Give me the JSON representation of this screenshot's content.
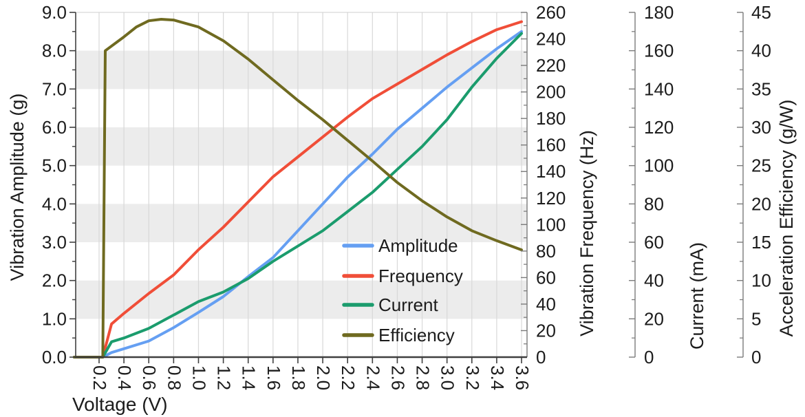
{
  "chart_data": {
    "type": "line",
    "title": "",
    "xlabel": "Voltage (V)",
    "x_ticks": [
      "0.2",
      "0.4",
      "0.6",
      "0.8",
      "1.0",
      "1.2",
      "1.4",
      "1.6",
      "1.8",
      "2.0",
      "2.2",
      "2.4",
      "2.6",
      "2.8",
      "3.0",
      "3.2",
      "3.4",
      "3.6"
    ],
    "x_tick_values": [
      0.2,
      0.4,
      0.6,
      0.8,
      1.0,
      1.2,
      1.4,
      1.6,
      1.8,
      2.0,
      2.2,
      2.4,
      2.6,
      2.8,
      3.0,
      3.2,
      3.4,
      3.6
    ],
    "x_range": [
      0.0,
      3.65
    ],
    "background_bands_amplitude": [
      [
        1,
        2
      ],
      [
        3,
        4
      ],
      [
        5,
        6
      ],
      [
        7,
        8
      ]
    ],
    "axes": [
      {
        "id": "amplitude",
        "label": "Vibration Amplitude (g)",
        "side": "left",
        "min": 0,
        "max": 9,
        "tick_step": 1,
        "minor_step": 0.5,
        "decimals": 1
      },
      {
        "id": "frequency",
        "label": "Vibration Frequency (Hz)",
        "side": "right",
        "min": 0,
        "max": 260,
        "tick_step": 20,
        "minor_step": 10,
        "decimals": 0
      },
      {
        "id": "current",
        "label": "Current (mA)",
        "side": "right",
        "min": 0,
        "max": 180,
        "tick_step": 20,
        "minor_step": 10,
        "decimals": 0
      },
      {
        "id": "efficiency",
        "label": "Acceleration Efficiency (g/W)",
        "side": "right",
        "min": 0,
        "max": 45,
        "tick_step": 5,
        "minor_step": 2.5,
        "decimals": 0
      }
    ],
    "series": [
      {
        "name": "Amplitude",
        "axis": "amplitude",
        "unit": "g",
        "color": "#659ff2",
        "points": [
          [
            0,
            0
          ],
          [
            0.23,
            0
          ],
          [
            0.3,
            0.12
          ],
          [
            0.4,
            0.22
          ],
          [
            0.6,
            0.42
          ],
          [
            0.8,
            0.77
          ],
          [
            1.0,
            1.17
          ],
          [
            1.2,
            1.58
          ],
          [
            1.4,
            2.1
          ],
          [
            1.6,
            2.6
          ],
          [
            1.8,
            3.3
          ],
          [
            2.0,
            4.0
          ],
          [
            2.2,
            4.7
          ],
          [
            2.4,
            5.3
          ],
          [
            2.6,
            5.95
          ],
          [
            2.8,
            6.5
          ],
          [
            3.0,
            7.05
          ],
          [
            3.2,
            7.55
          ],
          [
            3.4,
            8.05
          ],
          [
            3.6,
            8.5
          ]
        ]
      },
      {
        "name": "Frequency",
        "axis": "frequency",
        "unit": "Hz",
        "color": "#f04e38",
        "points": [
          [
            0,
            0
          ],
          [
            0.23,
            0
          ],
          [
            0.3,
            25
          ],
          [
            0.4,
            33
          ],
          [
            0.6,
            48
          ],
          [
            0.8,
            62
          ],
          [
            1.0,
            81
          ],
          [
            1.2,
            98
          ],
          [
            1.4,
            117
          ],
          [
            1.6,
            136
          ],
          [
            1.8,
            151
          ],
          [
            2.0,
            166
          ],
          [
            2.2,
            181
          ],
          [
            2.4,
            195
          ],
          [
            2.6,
            206
          ],
          [
            2.8,
            217
          ],
          [
            3.0,
            228
          ],
          [
            3.2,
            238
          ],
          [
            3.4,
            247
          ],
          [
            3.6,
            253
          ]
        ]
      },
      {
        "name": "Current",
        "axis": "current",
        "unit": "mA",
        "color": "#1b9c6d",
        "points": [
          [
            0,
            0
          ],
          [
            0.23,
            0
          ],
          [
            0.3,
            8
          ],
          [
            0.4,
            10
          ],
          [
            0.6,
            15
          ],
          [
            0.8,
            22
          ],
          [
            1.0,
            29
          ],
          [
            1.2,
            34
          ],
          [
            1.4,
            41
          ],
          [
            1.6,
            50
          ],
          [
            1.8,
            58
          ],
          [
            2.0,
            66
          ],
          [
            2.2,
            76
          ],
          [
            2.4,
            86
          ],
          [
            2.6,
            98
          ],
          [
            2.8,
            110
          ],
          [
            3.0,
            124
          ],
          [
            3.2,
            141
          ],
          [
            3.4,
            156
          ],
          [
            3.6,
            169
          ]
        ]
      },
      {
        "name": "Efficiency",
        "axis": "efficiency",
        "unit": "g/W",
        "color": "#6f6a20",
        "points": [
          [
            0,
            0
          ],
          [
            0.23,
            0
          ],
          [
            0.25,
            40
          ],
          [
            0.4,
            41.8
          ],
          [
            0.5,
            43.1
          ],
          [
            0.6,
            43.9
          ],
          [
            0.7,
            44.1
          ],
          [
            0.8,
            44
          ],
          [
            1.0,
            43.1
          ],
          [
            1.2,
            41.3
          ],
          [
            1.4,
            38.9
          ],
          [
            1.6,
            36.2
          ],
          [
            1.8,
            33.5
          ],
          [
            2.0,
            31
          ],
          [
            2.2,
            28.3
          ],
          [
            2.4,
            25.6
          ],
          [
            2.6,
            22.8
          ],
          [
            2.8,
            20.4
          ],
          [
            3.0,
            18.3
          ],
          [
            3.2,
            16.5
          ],
          [
            3.4,
            15.2
          ],
          [
            3.6,
            14
          ]
        ]
      }
    ],
    "legend": {
      "position": "inside-lower-right",
      "items": [
        "Amplitude",
        "Frequency",
        "Current",
        "Efficiency"
      ]
    }
  },
  "colors": {
    "background": "#ffffff",
    "band": "#ececec",
    "gridline": "#d8d8d8",
    "top_border": "#cfcfcf",
    "spine_dark": "#3f3f3f",
    "spine_light": "#7a7a7a",
    "text": "#1c1c1c",
    "amplitude_line": "#659ff2",
    "frequency_line": "#f04e38",
    "current_line": "#1b9c6d",
    "efficiency_line": "#6f6a20"
  }
}
